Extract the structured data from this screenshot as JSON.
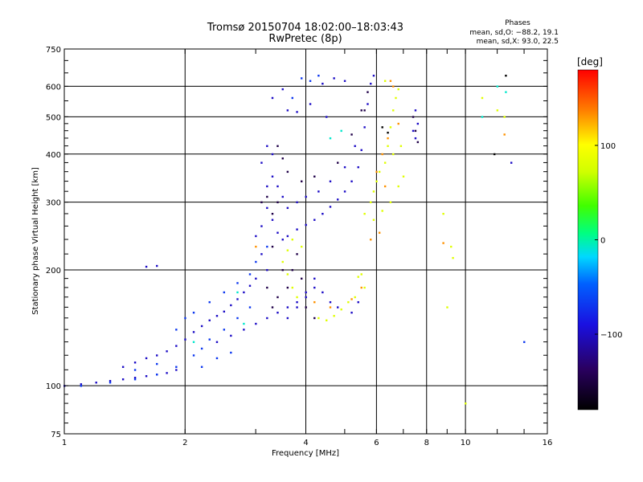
{
  "chart_data": {
    "type": "scatter",
    "title": "Tromsø 20150704 18:02:00–18:03:43",
    "subtitle": "RwPretec (8p)",
    "phase_header": "Phases",
    "phase_stats": [
      "mean, sd,O: −88.2, 19.1",
      "mean, sd,X:  93.0, 22.5"
    ],
    "xlabel": "Frequency [MHz]",
    "ylabel": "Stationary phase Virtual Height [km]",
    "x_scale": "log",
    "y_scale": "log",
    "xlim": [
      1,
      16
    ],
    "ylim": [
      75,
      750
    ],
    "x_ticks": [
      1,
      2,
      4,
      6,
      8,
      10,
      16
    ],
    "x_tick_labels": [
      "1",
      "2",
      "4",
      "6",
      "8",
      "10",
      "16"
    ],
    "y_ticks": [
      75,
      100,
      200,
      300,
      400,
      500,
      600,
      750
    ],
    "y_tick_labels": [
      "75",
      "100",
      "200",
      "300",
      "400",
      "500",
      "600",
      "750"
    ],
    "grid": true,
    "colorbar": {
      "label": "[deg]",
      "range": [
        -180,
        180
      ],
      "ticks": [
        -100,
        0,
        100
      ],
      "tick_labels": [
        "−100",
        "0",
        "100"
      ],
      "colormap": "rainbow"
    },
    "series": [
      {
        "phase_deg": -100,
        "points": [
          [
            1.0,
            100
          ],
          [
            1.1,
            101
          ],
          [
            1.2,
            102
          ],
          [
            1.3,
            103
          ],
          [
            1.4,
            104
          ],
          [
            1.5,
            105
          ],
          [
            1.6,
            106
          ],
          [
            1.7,
            107
          ],
          [
            1.8,
            108
          ],
          [
            1.9,
            110
          ],
          [
            1.4,
            112
          ],
          [
            1.5,
            115
          ],
          [
            1.6,
            118
          ],
          [
            1.7,
            120
          ],
          [
            1.8,
            123
          ],
          [
            1.9,
            127
          ],
          [
            2.0,
            132
          ],
          [
            2.1,
            138
          ],
          [
            2.2,
            143
          ],
          [
            2.3,
            148
          ],
          [
            2.4,
            152
          ],
          [
            2.5,
            156
          ],
          [
            2.6,
            162
          ],
          [
            2.7,
            168
          ],
          [
            2.8,
            175
          ],
          [
            2.9,
            182
          ],
          [
            3.0,
            190
          ],
          [
            1.6,
            204
          ],
          [
            1.7,
            205
          ],
          [
            2.4,
            130
          ],
          [
            2.6,
            135
          ],
          [
            2.8,
            140
          ],
          [
            3.0,
            145
          ],
          [
            3.2,
            150
          ],
          [
            3.4,
            155
          ],
          [
            3.6,
            160
          ],
          [
            3.8,
            165
          ],
          [
            4.0,
            170
          ],
          [
            4.2,
            180
          ],
          [
            3.0,
            245
          ],
          [
            3.1,
            220
          ],
          [
            3.2,
            200
          ],
          [
            3.1,
            260
          ],
          [
            3.2,
            290
          ],
          [
            3.2,
            330
          ],
          [
            3.1,
            380
          ],
          [
            3.2,
            420
          ],
          [
            3.3,
            350
          ],
          [
            3.3,
            270
          ],
          [
            3.4,
            250
          ],
          [
            3.5,
            240
          ],
          [
            3.6,
            245
          ],
          [
            3.8,
            255
          ],
          [
            4.0,
            262
          ],
          [
            4.2,
            270
          ],
          [
            4.4,
            280
          ],
          [
            4.6,
            292
          ],
          [
            4.8,
            305
          ],
          [
            5.0,
            320
          ],
          [
            5.2,
            340
          ],
          [
            5.4,
            370
          ],
          [
            5.5,
            410
          ],
          [
            5.6,
            470
          ],
          [
            5.7,
            540
          ],
          [
            5.8,
            610
          ],
          [
            5.9,
            640
          ],
          [
            3.3,
            400
          ],
          [
            3.4,
            330
          ],
          [
            3.5,
            310
          ],
          [
            3.6,
            290
          ],
          [
            3.8,
            300
          ],
          [
            4.0,
            310
          ],
          [
            4.3,
            320
          ],
          [
            4.6,
            340
          ],
          [
            5.0,
            370
          ],
          [
            5.3,
            420
          ],
          [
            3.6,
            520
          ],
          [
            3.8,
            515
          ],
          [
            4.1,
            540
          ],
          [
            4.5,
            500
          ],
          [
            4.4,
            610
          ],
          [
            4.7,
            630
          ],
          [
            5.0,
            620
          ],
          [
            3.3,
            560
          ],
          [
            3.5,
            590
          ],
          [
            3.6,
            150
          ],
          [
            3.8,
            160
          ],
          [
            4.0,
            175
          ],
          [
            4.2,
            190
          ],
          [
            4.4,
            175
          ],
          [
            4.6,
            165
          ],
          [
            4.8,
            160
          ],
          [
            5.2,
            155
          ],
          [
            5.4,
            165
          ],
          [
            7.4,
            460
          ],
          [
            7.5,
            520
          ],
          [
            7.6,
            480
          ],
          [
            7.5,
            440
          ],
          [
            13.0,
            380
          ]
        ]
      },
      {
        "phase_deg": -150,
        "points": [
          [
            3.1,
            300
          ],
          [
            3.2,
            310
          ],
          [
            3.3,
            280
          ],
          [
            3.4,
            300
          ],
          [
            3.3,
            230
          ],
          [
            3.2,
            180
          ],
          [
            3.3,
            160
          ],
          [
            3.4,
            170
          ],
          [
            3.5,
            200
          ],
          [
            3.6,
            180
          ],
          [
            3.7,
            200
          ],
          [
            3.8,
            220
          ],
          [
            3.9,
            190
          ],
          [
            4.0,
            160
          ],
          [
            4.2,
            150
          ],
          [
            5.6,
            520
          ],
          [
            5.7,
            580
          ],
          [
            7.4,
            500
          ],
          [
            7.5,
            460
          ],
          [
            3.4,
            420
          ],
          [
            3.5,
            390
          ],
          [
            3.6,
            360
          ],
          [
            3.9,
            340
          ],
          [
            4.2,
            350
          ],
          [
            4.8,
            380
          ],
          [
            5.2,
            450
          ],
          [
            5.5,
            520
          ],
          [
            7.6,
            430
          ]
        ]
      },
      {
        "phase_deg": -70,
        "points": [
          [
            1.1,
            100
          ],
          [
            1.3,
            102
          ],
          [
            1.5,
            104
          ],
          [
            1.7,
            107
          ],
          [
            1.9,
            112
          ],
          [
            2.1,
            120
          ],
          [
            2.2,
            125
          ],
          [
            2.3,
            132
          ],
          [
            2.5,
            140
          ],
          [
            2.7,
            150
          ],
          [
            2.9,
            160
          ],
          [
            2.2,
            112
          ],
          [
            2.4,
            118
          ],
          [
            2.6,
            122
          ],
          [
            1.9,
            140
          ],
          [
            2.0,
            150
          ],
          [
            2.1,
            155
          ],
          [
            2.3,
            165
          ],
          [
            2.5,
            175
          ],
          [
            2.7,
            185
          ],
          [
            2.9,
            195
          ],
          [
            1.5,
            110
          ],
          [
            1.7,
            114
          ],
          [
            3.9,
            630
          ],
          [
            4.1,
            620
          ],
          [
            4.3,
            640
          ],
          [
            3.7,
            560
          ],
          [
            14.0,
            130
          ],
          [
            3.0,
            210
          ],
          [
            3.2,
            230
          ]
        ]
      },
      {
        "phase_deg": 80,
        "points": [
          [
            4.3,
            150
          ],
          [
            4.5,
            148
          ],
          [
            4.7,
            152
          ],
          [
            4.9,
            158
          ],
          [
            5.1,
            165
          ],
          [
            5.3,
            170
          ],
          [
            5.6,
            180
          ],
          [
            5.4,
            192
          ],
          [
            5.5,
            195
          ],
          [
            3.5,
            210
          ],
          [
            3.6,
            225
          ],
          [
            3.7,
            240
          ],
          [
            3.9,
            230
          ],
          [
            3.6,
            195
          ],
          [
            3.7,
            180
          ],
          [
            3.8,
            170
          ],
          [
            5.8,
            300
          ],
          [
            5.9,
            320
          ],
          [
            6.0,
            340
          ],
          [
            6.1,
            360
          ],
          [
            6.3,
            380
          ],
          [
            6.4,
            420
          ],
          [
            6.5,
            470
          ],
          [
            6.6,
            520
          ],
          [
            6.7,
            560
          ],
          [
            6.8,
            590
          ],
          [
            5.6,
            280
          ],
          [
            5.9,
            270
          ],
          [
            6.2,
            285
          ],
          [
            6.5,
            300
          ],
          [
            6.8,
            330
          ],
          [
            7.0,
            350
          ],
          [
            6.6,
            400
          ],
          [
            6.9,
            420
          ],
          [
            6.3,
            620
          ],
          [
            8.8,
            280
          ],
          [
            9.3,
            215
          ],
          [
            9.2,
            230
          ],
          [
            9.0,
            160
          ],
          [
            12.5,
            500
          ],
          [
            12.0,
            520
          ],
          [
            10.0,
            90
          ],
          [
            11.0,
            560
          ]
        ]
      },
      {
        "phase_deg": 130,
        "points": [
          [
            6.0,
            360
          ],
          [
            6.2,
            400
          ],
          [
            6.4,
            440
          ],
          [
            6.5,
            620
          ],
          [
            6.6,
            600
          ],
          [
            5.8,
            240
          ],
          [
            6.1,
            250
          ],
          [
            5.5,
            180
          ],
          [
            5.2,
            168
          ],
          [
            4.6,
            160
          ],
          [
            4.2,
            165
          ],
          [
            6.3,
            330
          ],
          [
            6.8,
            480
          ],
          [
            12.5,
            450
          ],
          [
            8.8,
            235
          ],
          [
            3.0,
            230
          ]
        ]
      },
      {
        "phase_deg": -10,
        "points": [
          [
            2.1,
            130
          ],
          [
            2.7,
            175
          ],
          [
            4.9,
            460
          ],
          [
            4.6,
            440
          ],
          [
            11.0,
            500
          ],
          [
            12.0,
            600
          ],
          [
            12.6,
            580
          ],
          [
            2.8,
            145
          ]
        ]
      },
      {
        "phase_deg": -180,
        "points": [
          [
            12.6,
            640
          ],
          [
            6.4,
            455
          ],
          [
            6.2,
            470
          ],
          [
            11.8,
            400
          ]
        ]
      }
    ]
  }
}
